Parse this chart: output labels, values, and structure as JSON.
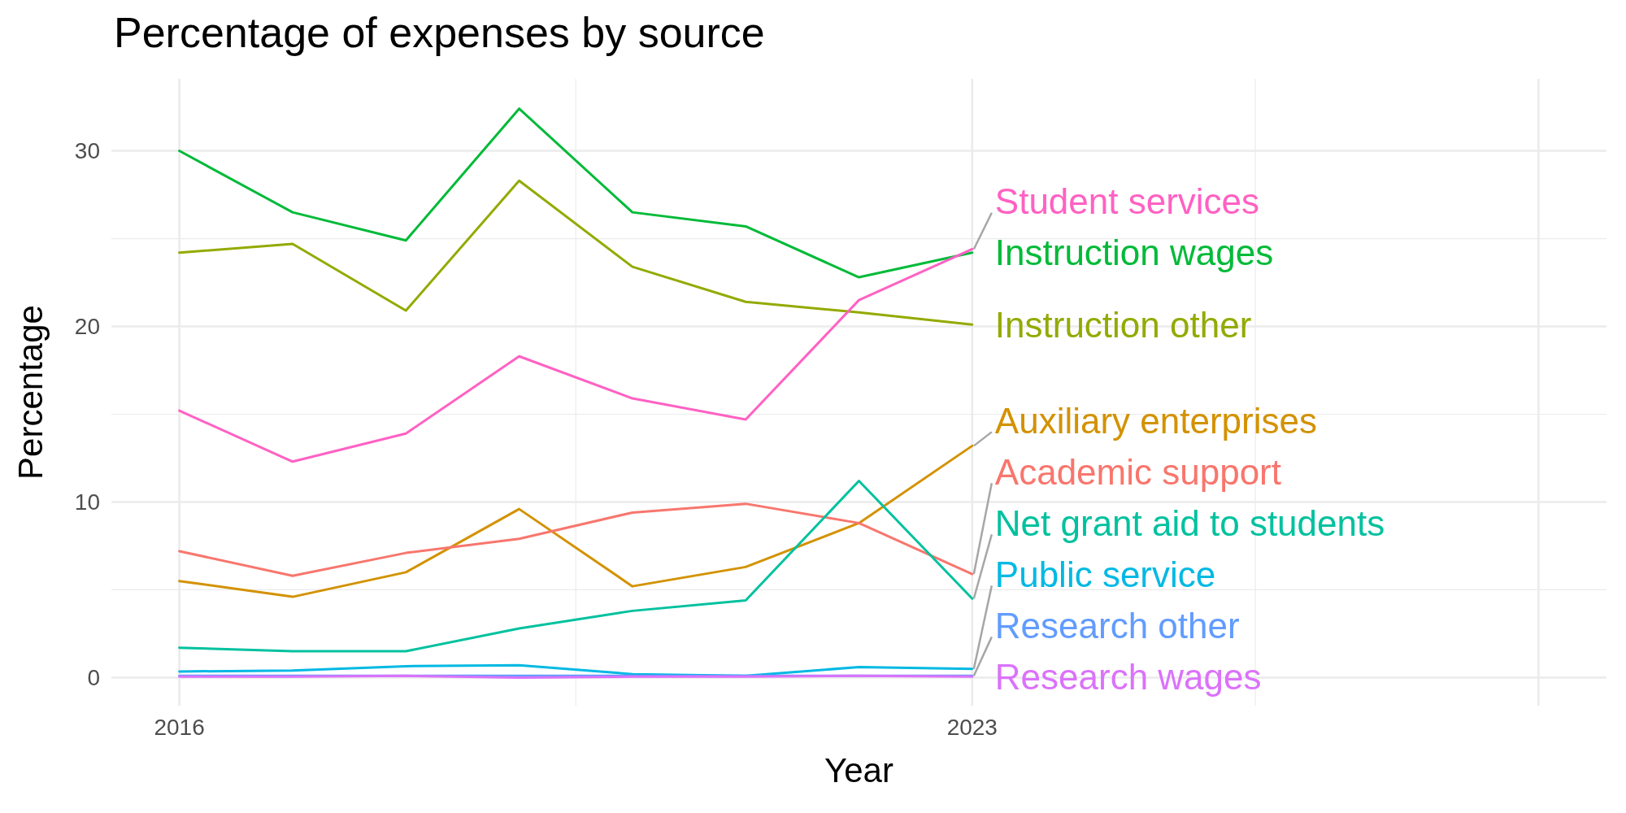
{
  "chart_data": {
    "type": "line",
    "title": "Percentage of expenses by source",
    "xlabel": "Year",
    "ylabel": "Percentage",
    "x": [
      2016,
      2017,
      2018,
      2019,
      2020,
      2021,
      2022,
      2023
    ],
    "xlim": [
      2015.4,
      2028.6
    ],
    "xticks": [
      2016,
      2023,
      {
        "value": 2028,
        "label": null
      }
    ],
    "ylim": [
      -1.6,
      34.1
    ],
    "yticks": [
      0,
      10,
      20,
      30
    ],
    "grid": true,
    "series": [
      {
        "name": "Instruction wages",
        "color": "#00ba38",
        "values": [
          30.0,
          26.5,
          24.9,
          32.4,
          26.5,
          25.7,
          22.8,
          24.2
        ]
      },
      {
        "name": "Instruction other",
        "color": "#93aa00",
        "values": [
          24.2,
          24.7,
          20.9,
          28.3,
          23.4,
          21.4,
          20.8,
          20.1
        ]
      },
      {
        "name": "Student services",
        "color": "#ff61c3",
        "values": [
          15.2,
          12.3,
          13.9,
          18.3,
          15.9,
          14.7,
          21.5,
          24.4
        ]
      },
      {
        "name": "Auxiliary enterprises",
        "color": "#d39200",
        "values": [
          5.5,
          4.6,
          6.0,
          9.6,
          5.2,
          6.3,
          8.8,
          13.2
        ]
      },
      {
        "name": "Academic support",
        "color": "#f8766d",
        "values": [
          7.2,
          5.8,
          7.1,
          7.9,
          9.4,
          9.9,
          8.8,
          5.9
        ]
      },
      {
        "name": "Net grant aid to students",
        "color": "#00c19f",
        "values": [
          1.7,
          1.5,
          1.5,
          2.8,
          3.8,
          4.4,
          11.2,
          4.5
        ]
      },
      {
        "name": "Public service",
        "color": "#00b9e3",
        "values": [
          0.35,
          0.4,
          0.65,
          0.7,
          0.2,
          0.1,
          0.6,
          0.5
        ]
      },
      {
        "name": "Research other",
        "color": "#619cff",
        "values": [
          0.1,
          0.1,
          0.1,
          0.1,
          0.1,
          0.1,
          0.1,
          0.1
        ]
      },
      {
        "name": "Research wages",
        "color": "#db72fb",
        "values": [
          0.05,
          0.05,
          0.1,
          0.0,
          0.05,
          0.05,
          0.1,
          0.05
        ]
      }
    ]
  }
}
